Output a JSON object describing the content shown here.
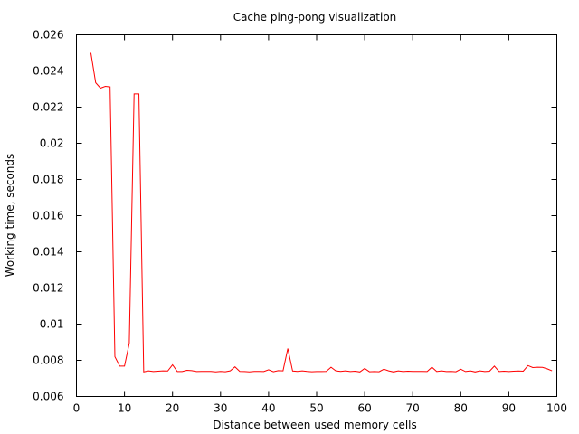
{
  "chart_data": {
    "type": "line",
    "title": "Cache ping-pong visualization",
    "xlabel": "Distance between used memory cells",
    "ylabel": "Working time, seconds",
    "xlim": [
      0,
      100
    ],
    "ylim": [
      0.006,
      0.026
    ],
    "grid": false,
    "x_ticks": [
      0,
      10,
      20,
      30,
      40,
      50,
      60,
      70,
      80,
      90,
      100
    ],
    "y_ticks": [
      0.006,
      0.008,
      0.01,
      0.012,
      0.014,
      0.016,
      0.018,
      0.02,
      0.022,
      0.024,
      0.026
    ],
    "x_tick_labels": [
      "0",
      "10",
      "20",
      "30",
      "40",
      "50",
      "60",
      "70",
      "80",
      "90",
      "100"
    ],
    "y_tick_labels": [
      "0.006",
      "0.008",
      "0.01",
      "0.012",
      "0.014",
      "0.016",
      "0.018",
      "0.02",
      "0.022",
      "0.024",
      "0.026"
    ],
    "line_color": "#ff0000",
    "series": [
      {
        "x": [
          3,
          4,
          5,
          6,
          7,
          8,
          9,
          10,
          11,
          12,
          13,
          14,
          15,
          16,
          17,
          18,
          19,
          20,
          21,
          22,
          23,
          24,
          25,
          26,
          27,
          28,
          29,
          30,
          31,
          32,
          33,
          34,
          35,
          36,
          37,
          38,
          39,
          40,
          41,
          42,
          43,
          44,
          45,
          46,
          47,
          48,
          49,
          50,
          51,
          52,
          53,
          54,
          55,
          56,
          57,
          58,
          59,
          60,
          61,
          62,
          63,
          64,
          65,
          66,
          67,
          68,
          69,
          70,
          71,
          72,
          73,
          74,
          75,
          76,
          77,
          78,
          79,
          80,
          81,
          82,
          83,
          84,
          85,
          86,
          87,
          88,
          89,
          90,
          91,
          92,
          93,
          94,
          95,
          96,
          97,
          98,
          99
        ],
        "y": [
          0.025,
          0.02335,
          0.02305,
          0.02315,
          0.02312,
          0.0082,
          0.00768,
          0.00768,
          0.00895,
          0.02273,
          0.02273,
          0.00736,
          0.00742,
          0.00738,
          0.0074,
          0.00742,
          0.00741,
          0.00775,
          0.00738,
          0.00738,
          0.00745,
          0.00743,
          0.00738,
          0.00739,
          0.00739,
          0.00739,
          0.00736,
          0.00739,
          0.00737,
          0.00742,
          0.00764,
          0.00739,
          0.00738,
          0.00736,
          0.00739,
          0.00739,
          0.00738,
          0.00748,
          0.00737,
          0.00743,
          0.00742,
          0.00865,
          0.00741,
          0.00739,
          0.00742,
          0.00739,
          0.00737,
          0.00738,
          0.00738,
          0.00739,
          0.00762,
          0.00742,
          0.00739,
          0.00742,
          0.00738,
          0.0074,
          0.00736,
          0.00755,
          0.00737,
          0.00738,
          0.00737,
          0.00751,
          0.00742,
          0.00736,
          0.00742,
          0.00738,
          0.0074,
          0.00739,
          0.00739,
          0.00739,
          0.00738,
          0.00762,
          0.00738,
          0.00742,
          0.00738,
          0.00739,
          0.00737,
          0.00751,
          0.00738,
          0.00742,
          0.00736,
          0.00742,
          0.00738,
          0.0074,
          0.00768,
          0.00738,
          0.0074,
          0.00738,
          0.0074,
          0.00741,
          0.0074,
          0.00771,
          0.0076,
          0.00762,
          0.00761,
          0.00753,
          0.00742
        ]
      }
    ]
  }
}
